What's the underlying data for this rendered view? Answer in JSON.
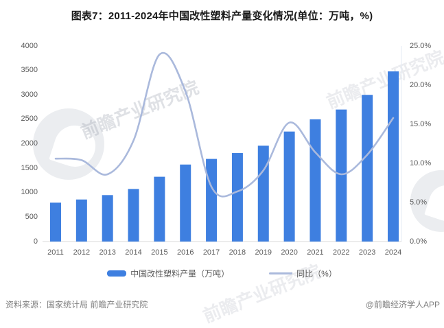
{
  "title": "图表7：2011-2024年中国改性塑料产量变化情况(单位：万吨，%)",
  "chart_data": {
    "type": "bar",
    "subtype": "bar+line-combo",
    "categories": [
      "2011",
      "2012",
      "2013",
      "2014",
      "2015",
      "2016",
      "2017",
      "2018",
      "2019",
      "2020",
      "2021",
      "2022",
      "2023",
      "2024"
    ],
    "series": [
      {
        "name": "中国改性塑料产量（万吨）",
        "type": "bar",
        "axis": "left",
        "color": "#3e7fe0",
        "values": [
          795,
          860,
          950,
          1075,
          1325,
          1575,
          1690,
          1810,
          1960,
          2250,
          2500,
          2700,
          3000,
          3480
        ]
      },
      {
        "name": "同比（%）",
        "type": "line",
        "axis": "right",
        "color": "#aab9dc",
        "smooth": true,
        "values": [
          10.6,
          10.4,
          8.6,
          12.9,
          23.9,
          19.2,
          7.0,
          6.4,
          9.1,
          15.2,
          11.4,
          8.6,
          11.1,
          15.8
        ]
      }
    ],
    "left_axis": {
      "min": 0,
      "max": 4000,
      "step": 500,
      "ticks": [
        "0",
        "500",
        "1000",
        "1500",
        "2000",
        "2500",
        "3000",
        "3500",
        "4000"
      ]
    },
    "right_axis": {
      "min": 0,
      "max": 25,
      "step": 5,
      "ticks": [
        "0.0%",
        "5.0%",
        "10.0%",
        "15.0%",
        "20.0%",
        "25.0%"
      ]
    },
    "grid": false,
    "legend_position": "bottom",
    "baseline_color": "#d9d9d9",
    "right_border_color": "#e4ebf4"
  },
  "legend": {
    "items": [
      {
        "label": "中国改性塑料产量（万吨）",
        "swatch": "bar"
      },
      {
        "label": "同比（%）",
        "swatch": "line"
      }
    ]
  },
  "footer": {
    "source": "资料来源：国家统计局 前瞻产业研究院",
    "credit": "@前瞻经济学人APP"
  },
  "watermark": {
    "text": "前瞻产业研究院"
  }
}
